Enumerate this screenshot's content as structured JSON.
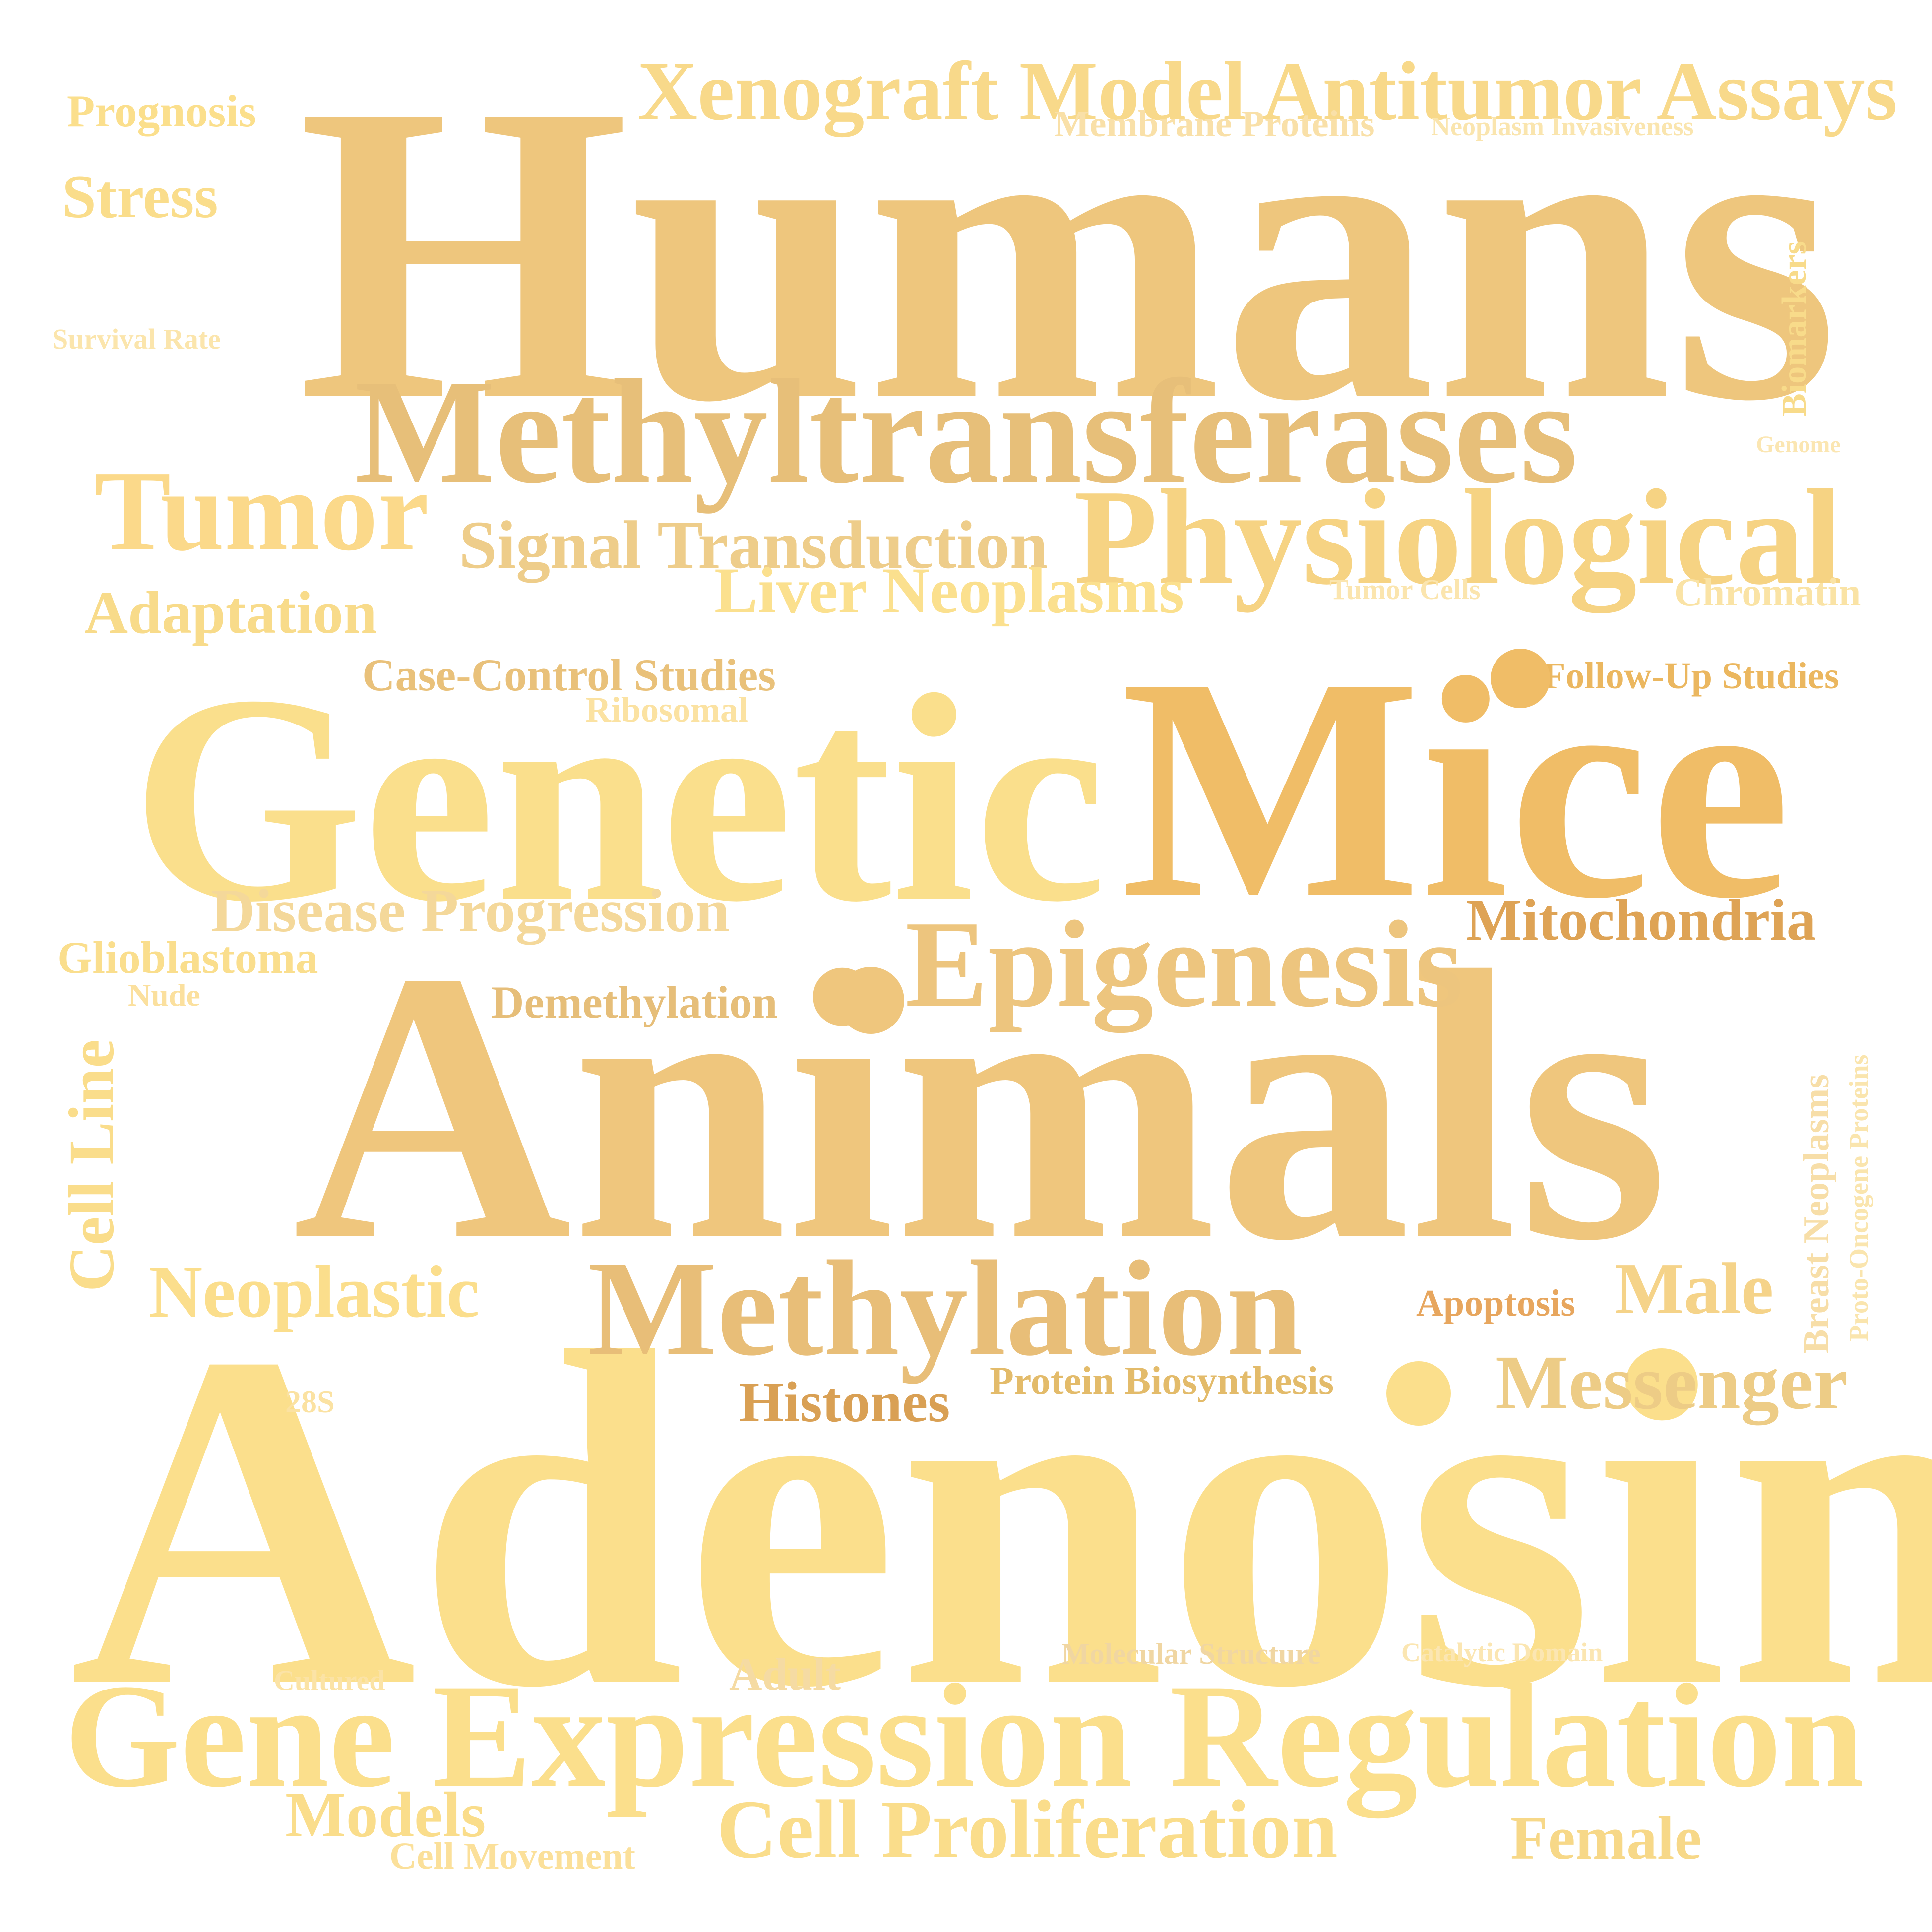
{
  "words": [
    {
      "id": "w-humans",
      "text": "Humans",
      "color": "#EEC67D"
    },
    {
      "id": "w-adenosine",
      "text": "Adenosine",
      "color": "#FBDF8C"
    },
    {
      "id": "w-animals",
      "text": "Animals",
      "color": "#EFC67D"
    },
    {
      "id": "w-mice",
      "text": "Mice",
      "color": "#F0BD67"
    },
    {
      "id": "w-genetic",
      "text": "Genetic",
      "color": "#FADF8C"
    },
    {
      "id": "w-methyltransferases",
      "text": "Methyltransferases",
      "color": "#E7BF79"
    },
    {
      "id": "w-gene-expression-regulation",
      "text": "Gene Expression Regulation",
      "color": "#FBDF8C"
    },
    {
      "id": "w-physiological",
      "text": "Physiological",
      "color": "#F6D383"
    },
    {
      "id": "w-methylation",
      "text": "Methylation",
      "color": "#E8BE78"
    },
    {
      "id": "w-epigenesis",
      "text": "Epigenesis",
      "color": "#EDC57E"
    },
    {
      "id": "w-xenograft",
      "text": "Xenograft Model Antitumor Assays",
      "color": "#F8D98A"
    },
    {
      "id": "w-tumor",
      "text": "Tumor",
      "color": "#FBD98A"
    },
    {
      "id": "w-signal-transduction",
      "text": "Signal Transduction",
      "color": "#EECD8A"
    },
    {
      "id": "w-cell-proliferation",
      "text": "Cell Proliferation",
      "color": "#FADD8B"
    },
    {
      "id": "w-neoplastic",
      "text": "Neoplastic",
      "color": "#FBDE8C"
    },
    {
      "id": "w-disease-progression",
      "text": "Disease Progression",
      "color": "#F4D89A"
    },
    {
      "id": "w-liver-neoplasms",
      "text": "Liver Neoplasms",
      "color": "#FBE08E"
    },
    {
      "id": "w-messenger",
      "text": "Messenger",
      "color": "#EDCC86"
    },
    {
      "id": "w-mitochondria",
      "text": "Mitochondria",
      "color": "#DEA355"
    },
    {
      "id": "w-male",
      "text": "Male",
      "color": "#F5D389"
    },
    {
      "id": "w-adaptation",
      "text": "Adaptation",
      "color": "#F8DB8A"
    },
    {
      "id": "w-models",
      "text": "Models",
      "color": "#FADD8B"
    },
    {
      "id": "w-female",
      "text": "Female",
      "color": "#F7D888"
    },
    {
      "id": "w-histones",
      "text": "Histones",
      "color": "#D9A054"
    },
    {
      "id": "w-stress",
      "text": "Stress",
      "color": "#FADD8B"
    },
    {
      "id": "w-case-control",
      "text": "Case-Control Studies",
      "color": "#E9C17A"
    },
    {
      "id": "w-cell-line",
      "text": "Cell Line",
      "color": "#FADD8B"
    },
    {
      "id": "w-glioblastoma",
      "text": "Glioblastoma",
      "color": "#FADE8D"
    },
    {
      "id": "w-demethylation",
      "text": "Demethylation",
      "color": "#E6BE79"
    },
    {
      "id": "w-follow-up",
      "text": "Follow-Up Studies",
      "color": "#EBB75F"
    },
    {
      "id": "w-apoptosis",
      "text": "Apoptosis",
      "color": "#E7A65E"
    },
    {
      "id": "w-prognosis",
      "text": "Prognosis",
      "color": "#FBDF8C"
    },
    {
      "id": "w-protein-biosynthesis",
      "text": "Protein Biosynthesis",
      "color": "#E3BB6A"
    },
    {
      "id": "w-chromatin",
      "text": "Chromatin",
      "color": "#FAE3A5"
    },
    {
      "id": "w-membrane-proteins",
      "text": "Membrane Proteins",
      "color": "#F9E0A8"
    },
    {
      "id": "w-adult",
      "text": "Adult",
      "color": "#F5DBA3"
    },
    {
      "id": "w-cell-movement",
      "text": "Cell Movement",
      "color": "#FBE09A"
    },
    {
      "id": "w-ribosomal",
      "text": "Ribosomal",
      "color": "#FBE2A2"
    },
    {
      "id": "w-molecular-structure",
      "text": "Molecular Structure",
      "color": "#F0D6A2"
    },
    {
      "id": "w-breast-neoplasms",
      "text": "Breast Neoplasms",
      "color": "#F7DEA8"
    },
    {
      "id": "w-biomarkers",
      "text": "Biomarkers",
      "color": "#F8DB8A"
    },
    {
      "id": "w-nude",
      "text": "Nude",
      "color": "#FBE09E"
    },
    {
      "id": "w-neoplasm-invasiveness",
      "text": "Neoplasm Invasiveness",
      "color": "#FAE5AE"
    },
    {
      "id": "w-cultured",
      "text": "Cultured",
      "color": "#FBE3A6"
    },
    {
      "id": "w-28s",
      "text": "28S",
      "color": "#FBE2A2"
    },
    {
      "id": "w-proto-oncogene",
      "text": "Proto-Oncogene Proteins",
      "color": "#FAE5AE"
    },
    {
      "id": "w-survival-rate",
      "text": "Survival Rate",
      "color": "#FBE5AC"
    },
    {
      "id": "w-tumor-cells",
      "text": "Tumor Cells",
      "color": "#FBE5AE"
    },
    {
      "id": "w-catalytic-domain",
      "text": "Catalytic Domain",
      "color": "#FBE6B2"
    },
    {
      "id": "w-genome",
      "text": "Genome",
      "color": "#FBE6B2"
    }
  ],
  "dots": [
    {
      "id": "dot-mice",
      "color": "#F0BD67"
    },
    {
      "id": "dot-animals",
      "color": "#EFC67D"
    },
    {
      "id": "dot-adenosine",
      "color": "#FBDF8C"
    }
  ]
}
